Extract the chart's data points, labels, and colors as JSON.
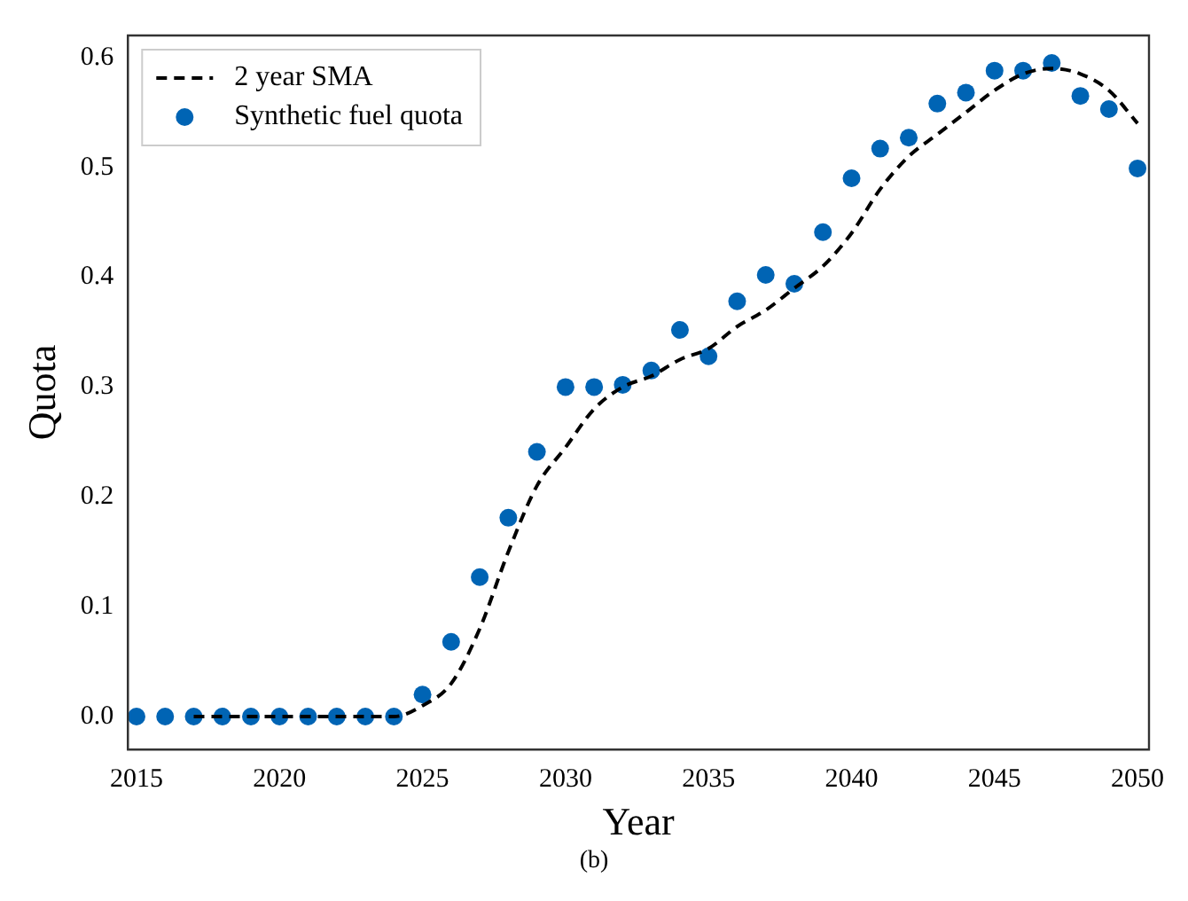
{
  "chart_data": {
    "type": "scatter",
    "xlabel": "Year",
    "ylabel": "Quota",
    "annotations": [
      "(b)"
    ],
    "xlim": [
      2014.7,
      2050.4
    ],
    "xticks": [
      2015,
      2020,
      2025,
      2030,
      2035,
      2040,
      2045,
      2050
    ],
    "ylim": [
      -0.03,
      0.62
    ],
    "yticks": [
      {
        "value": 0,
        "label": "0.0"
      },
      {
        "value": 0.1,
        "label": "0.1"
      },
      {
        "value": 0.2,
        "label": "0.2"
      },
      {
        "value": 0.3,
        "label": "0.3"
      },
      {
        "value": 0.4,
        "label": "0.4"
      },
      {
        "value": 0.5,
        "label": "0.5"
      },
      {
        "value": 0.6,
        "label": "0.6"
      }
    ],
    "grid": false,
    "legend": "top left",
    "marker": "circle",
    "series": [
      {
        "name": "2 year SMA",
        "type": "line",
        "line_style": "dashed",
        "marker": "none",
        "color": "#000000",
        "x": [
          2017,
          2018,
          2019,
          2020,
          2021,
          2022,
          2023,
          2024,
          2025,
          2026,
          2027,
          2028,
          2029,
          2030,
          2031,
          2032,
          2033,
          2034,
          2035,
          2036,
          2037,
          2038,
          2039,
          2040,
          2041,
          2042,
          2043,
          2044,
          2045,
          2046,
          2047,
          2048,
          2049,
          2050
        ],
        "values": [
          0,
          0,
          0,
          0,
          0,
          0,
          0,
          0,
          0.01,
          0.03,
          0.08,
          0.15,
          0.21,
          0.245,
          0.28,
          0.3,
          0.31,
          0.325,
          0.335,
          0.355,
          0.37,
          0.39,
          0.41,
          0.44,
          0.48,
          0.51,
          0.53,
          0.55,
          0.57,
          0.585,
          0.59,
          0.585,
          0.57,
          0.54
        ]
      },
      {
        "name": "Synthetic fuel quota",
        "color": "#0064b4",
        "x": [
          2015,
          2016,
          2017,
          2018,
          2019,
          2020,
          2021,
          2022,
          2023,
          2024,
          2025,
          2026,
          2027,
          2028,
          2029,
          2030,
          2031,
          2032,
          2033,
          2034,
          2035,
          2036,
          2037,
          2038,
          2039,
          2040,
          2041,
          2042,
          2043,
          2044,
          2045,
          2046,
          2047,
          2048,
          2049,
          2050
        ],
        "values": [
          0,
          0,
          0,
          0,
          0,
          0,
          0,
          0,
          0,
          0,
          0.02,
          0.068,
          0.127,
          0.181,
          0.241,
          0.3,
          0.3,
          0.302,
          0.315,
          0.352,
          0.328,
          0.378,
          0.402,
          0.394,
          0.441,
          0.49,
          0.517,
          0.527,
          0.558,
          0.568,
          0.588,
          0.588,
          0.595,
          0.565,
          0.553,
          0.499
        ]
      }
    ]
  }
}
